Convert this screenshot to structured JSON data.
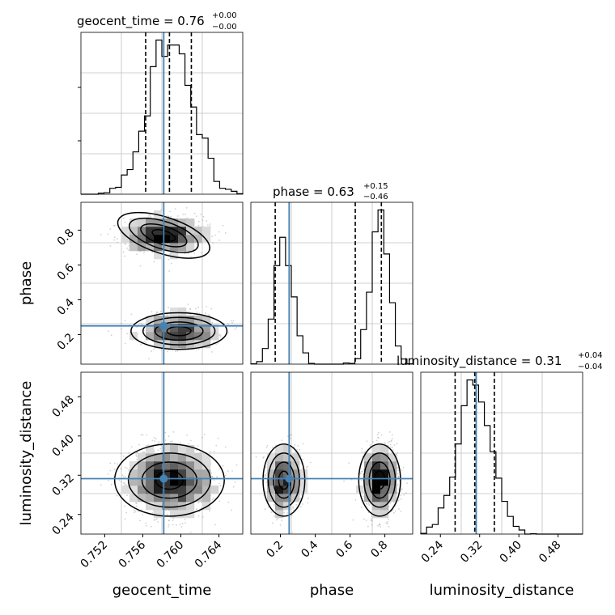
{
  "chart_data": {
    "type": "corner",
    "params": [
      "geocent_time",
      "phase",
      "luminosity_distance"
    ],
    "titles": [
      {
        "param": "geocent_time",
        "label": "geocent_time",
        "median": "0.76",
        "plus": "+0.00",
        "minus": "−0.00"
      },
      {
        "param": "phase",
        "label": "phase",
        "median": "0.63",
        "plus": "+0.15",
        "minus": "−0.46"
      },
      {
        "param": "luminosity_distance",
        "label": "luminosity_distance",
        "median": "0.31",
        "plus": "+0.04",
        "minus": "−0.04"
      }
    ],
    "ranges": {
      "geocent_time": [
        0.7495,
        0.7665
      ],
      "phase": [
        0.03,
        0.96
      ],
      "luminosity_distance": [
        0.2,
        0.53
      ]
    },
    "ticks": {
      "geocent_time": [
        "0.752",
        "0.756",
        "0.760",
        "0.764"
      ],
      "phase": [
        "0.2",
        "0.4",
        "0.6",
        "0.8"
      ],
      "luminosity_distance": [
        "0.24",
        "0.32",
        "0.40",
        "0.48"
      ]
    },
    "truth": {
      "geocent_time": 0.7582,
      "phase": 0.25,
      "luminosity_distance": 0.313
    },
    "quantiles": {
      "geocent_time": [
        0.7563,
        0.7588,
        0.7611
      ],
      "phase": [
        0.17,
        0.63,
        0.78
      ],
      "luminosity_distance": [
        0.27,
        0.31,
        0.35
      ]
    },
    "modes": [
      {
        "phase": 0.22,
        "phase_sigma": 0.05,
        "weight": 0.45,
        "geocent_time": 0.7598,
        "geocent_sigma": 0.0021
      },
      {
        "phase": 0.77,
        "phase_sigma": 0.05,
        "weight": 0.55,
        "geocent_time": 0.7582,
        "geocent_sigma": 0.0021
      }
    ],
    "luminosity_distance_dist": {
      "mean": 0.31,
      "sigma": 0.035
    },
    "colors": {
      "truth": "#4682b4",
      "contour": "#000000",
      "grid": "#c0c0c0",
      "scatter": "#9a9a9a"
    }
  }
}
